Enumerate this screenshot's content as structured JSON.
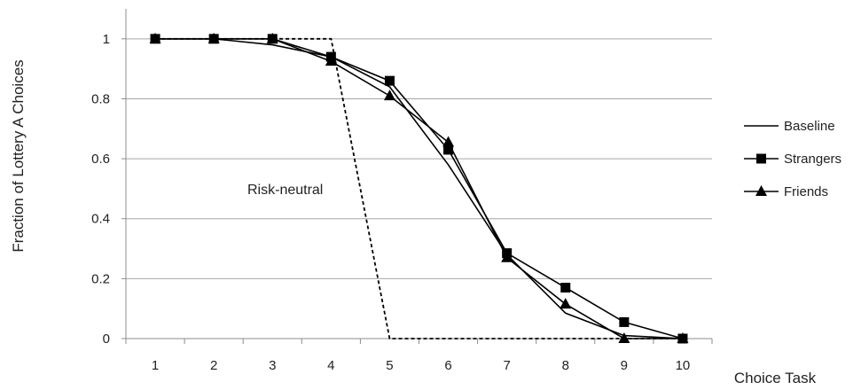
{
  "chart_data": {
    "type": "line",
    "title": "",
    "xlabel": "Choice Task",
    "ylabel": "Fraction of Lottery A Choices",
    "x": [
      1,
      2,
      3,
      4,
      5,
      6,
      7,
      8,
      9,
      10
    ],
    "xlim": [
      0.5,
      10.5
    ],
    "ylim": [
      0,
      1.1
    ],
    "y_ticks": [
      "0",
      "0.2",
      "0.4",
      "0.6",
      "0.8",
      "1"
    ],
    "x_ticks": [
      "1",
      "2",
      "3",
      "4",
      "5",
      "6",
      "7",
      "8",
      "9",
      "10"
    ],
    "grid": "horizontal",
    "legend_position": "right",
    "series": [
      {
        "name": "Baseline",
        "marker": "none",
        "values": [
          1,
          1,
          0.98,
          0.94,
          0.84,
          0.58,
          0.28,
          0.085,
          0.01,
          0
        ]
      },
      {
        "name": "Strangers",
        "marker": "square",
        "values": [
          1,
          1,
          1,
          0.94,
          0.86,
          0.63,
          0.285,
          0.17,
          0.055,
          0
        ]
      },
      {
        "name": "Friends",
        "marker": "triangle",
        "values": [
          1,
          1,
          1,
          0.925,
          0.81,
          0.655,
          0.27,
          0.115,
          0,
          0
        ]
      }
    ],
    "reference_line": {
      "label": "Risk-neutral",
      "style": "dashed",
      "x": [
        1,
        2,
        3,
        4,
        5,
        6,
        7,
        8,
        9,
        10
      ],
      "values": [
        1,
        1,
        1,
        1,
        0,
        0,
        0,
        0,
        0,
        0
      ]
    },
    "colors": {
      "series": "#000000",
      "grid": "#a6a6a6",
      "axis": "#8c8c8c",
      "text": "#222222"
    }
  }
}
